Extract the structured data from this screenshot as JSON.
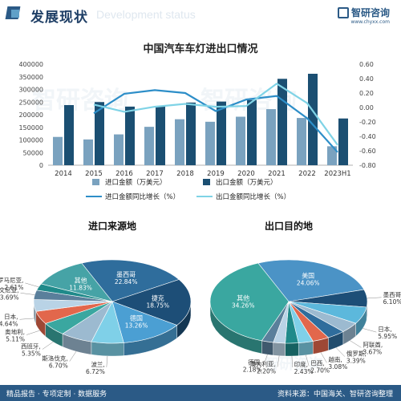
{
  "header": {
    "title": "发展现状",
    "ghost": "Development status",
    "brand_name": "智研咨询",
    "brand_url": "www.chyxx.com"
  },
  "footer": {
    "left": "精品报告 · 专项定制 · 数据服务",
    "right": "资料来源：中国海关、智研咨询整理"
  },
  "watermark": "智研咨询",
  "colors": {
    "import_bar": "#7aa2bf",
    "export_bar": "#1b4f72",
    "import_line": "#2d8ec8",
    "export_line": "#7fd3e6",
    "header": "#1f3f66"
  },
  "chart_data": [
    {
      "type": "bar",
      "title": "中国汽车车灯进出口情况",
      "categories": [
        "2014",
        "2015",
        "2016",
        "2017",
        "2018",
        "2019",
        "2020",
        "2021",
        "2022",
        "2023H1"
      ],
      "ylim": [
        0,
        400000
      ],
      "yticks": [
        "0",
        "50000",
        "100000",
        "150000",
        "200000",
        "250000",
        "300000",
        "350000",
        "400000"
      ],
      "y2lim": [
        -0.8,
        0.6
      ],
      "y2ticks": [
        "-0.80",
        "-0.60",
        "-0.40",
        "-0.20",
        "0.00",
        "0.20",
        "0.40",
        "0.60"
      ],
      "series": [
        {
          "name": "进口金额（万美元）",
          "axis": "left",
          "kind": "bar",
          "values": [
            112000,
            102000,
            122000,
            152000,
            182000,
            172000,
            192000,
            222000,
            187000,
            75000
          ]
        },
        {
          "name": "出口金额（万美元）",
          "axis": "left",
          "kind": "bar",
          "values": [
            238000,
            250000,
            232000,
            235000,
            248000,
            252000,
            258000,
            342000,
            362000,
            185000
          ]
        },
        {
          "name": "进口金额同比增长（%）",
          "axis": "right",
          "kind": "line",
          "values": [
            null,
            -0.08,
            0.19,
            0.24,
            0.2,
            -0.05,
            0.11,
            0.16,
            -0.15,
            -0.62
          ]
        },
        {
          "name": "出口金额同比增长（%）",
          "axis": "right",
          "kind": "line",
          "values": [
            null,
            0.04,
            -0.06,
            0.01,
            0.05,
            0.01,
            0.02,
            0.33,
            0.06,
            -0.52
          ]
        }
      ],
      "legend": "bottom"
    },
    {
      "type": "pie",
      "title": "进口来源地",
      "slices": [
        {
          "label": "墨西哥",
          "value": 22.84,
          "color": "#2f6d9c"
        },
        {
          "label": "捷克",
          "value": 18.75,
          "color": "#1d4e77"
        },
        {
          "label": "德国",
          "value": 13.26,
          "color": "#4b9fd3"
        },
        {
          "label": "波兰",
          "value": 6.72,
          "color": "#7fd0e8"
        },
        {
          "label": "斯洛伐克",
          "value": 6.7,
          "color": "#9cbad0"
        },
        {
          "label": "西班牙",
          "value": 5.35,
          "color": "#3aa7a0"
        },
        {
          "label": "奥地利",
          "value": 5.11,
          "color": "#e2674c"
        },
        {
          "label": "日本",
          "value": 4.64,
          "color": "#b9d3e6"
        },
        {
          "label": "斯洛文尼亚",
          "value": 3.69,
          "color": "#5a7f9b"
        },
        {
          "label": "罗马尼亚",
          "value": 2.61,
          "color": "#1f8a8a"
        },
        {
          "label": "其他",
          "value": 11.83,
          "color": "#46a3a6"
        }
      ],
      "labels_inside": [
        "墨西哥",
        "捷克",
        "德国"
      ],
      "values_text": {
        "墨西哥": "22.84%",
        "捷克": "18.75%",
        "德国": "13.26%",
        "波兰": "6.72%",
        "斯洛伐克": "6.70%",
        "西班牙": "5.35%",
        "奥地利": "5.11%",
        "日本": "4.64%",
        "斯洛文尼亚": "3.69%",
        "罗马尼亚": "2.61%",
        "其他": "11.83%"
      }
    },
    {
      "type": "pie",
      "title": "出口目的地",
      "slices": [
        {
          "label": "美国",
          "value": 24.06,
          "color": "#4b93c6"
        },
        {
          "label": "墨西哥",
          "value": 6.1,
          "color": "#1d4e77"
        },
        {
          "label": "日本",
          "value": 5.95,
          "color": "#5cb8dc"
        },
        {
          "label": "阿联酋",
          "value": 3.67,
          "color": "#9cbad0"
        },
        {
          "label": "俄罗斯",
          "value": 3.39,
          "color": "#2f6d9c"
        },
        {
          "label": "越南",
          "value": 3.08,
          "color": "#e2674c"
        },
        {
          "label": "巴西",
          "value": 2.7,
          "color": "#7fd0e8"
        },
        {
          "label": "印度",
          "value": 2.43,
          "color": "#1f8a8a"
        },
        {
          "label": "澳大利亚",
          "value": 2.2,
          "color": "#b9d3e6"
        },
        {
          "label": "德国",
          "value": 2.18,
          "color": "#5a7f9b"
        },
        {
          "label": "其他",
          "value": 34.26,
          "color": "#3aa7a0"
        }
      ],
      "values_text": {
        "美国": "24.06%",
        "墨西哥": "6.10%",
        "日本": "5.95%",
        "阿联酋": "3.67%",
        "俄罗斯": "3.39%",
        "越南": "3.08%",
        "巴西": "2.70%",
        "印度": "2.43%",
        "澳大利亚": "2.20%",
        "德国": "2.18%",
        "其他": "34.26%"
      }
    }
  ]
}
